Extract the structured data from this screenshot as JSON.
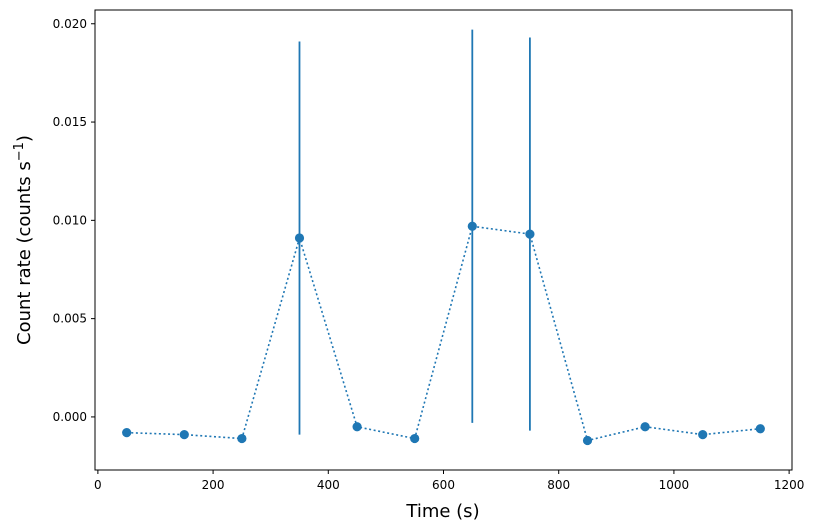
{
  "chart_data": {
    "type": "scatter",
    "title": "",
    "xlabel": "Time (s)",
    "ylabel": "Count rate (counts s",
    "ylabel_superscript": "−1",
    "ylabel_suffix": ")",
    "xlim": [
      -5,
      1205
    ],
    "ylim": [
      -0.0027,
      0.0207
    ],
    "xticks": [
      0,
      200,
      400,
      600,
      800,
      1000,
      1200
    ],
    "xtick_labels": [
      "0",
      "200",
      "400",
      "600",
      "800",
      "1000",
      "1200"
    ],
    "yticks": [
      0.0,
      0.005,
      0.01,
      0.015,
      0.02
    ],
    "ytick_labels": [
      "0.000",
      "0.005",
      "0.010",
      "0.015",
      "0.020"
    ],
    "grid": false,
    "line_style": "dotted",
    "color": "#1f77b4",
    "series": [
      {
        "x": [
          50,
          150,
          250,
          350,
          450,
          550,
          650,
          750,
          850,
          950,
          1050,
          1150
        ],
        "y": [
          -0.0008,
          -0.0009,
          -0.0011,
          0.0091,
          -0.0005,
          -0.0011,
          0.0097,
          0.0093,
          -0.0012,
          -0.0005,
          -0.0009,
          -0.0006
        ],
        "yerr": [
          0.00015,
          0.00015,
          0.00015,
          0.01,
          0.0001,
          0.0001,
          0.01,
          0.01,
          0.0002,
          0.0001,
          0.00015,
          0.00015
        ]
      }
    ]
  }
}
